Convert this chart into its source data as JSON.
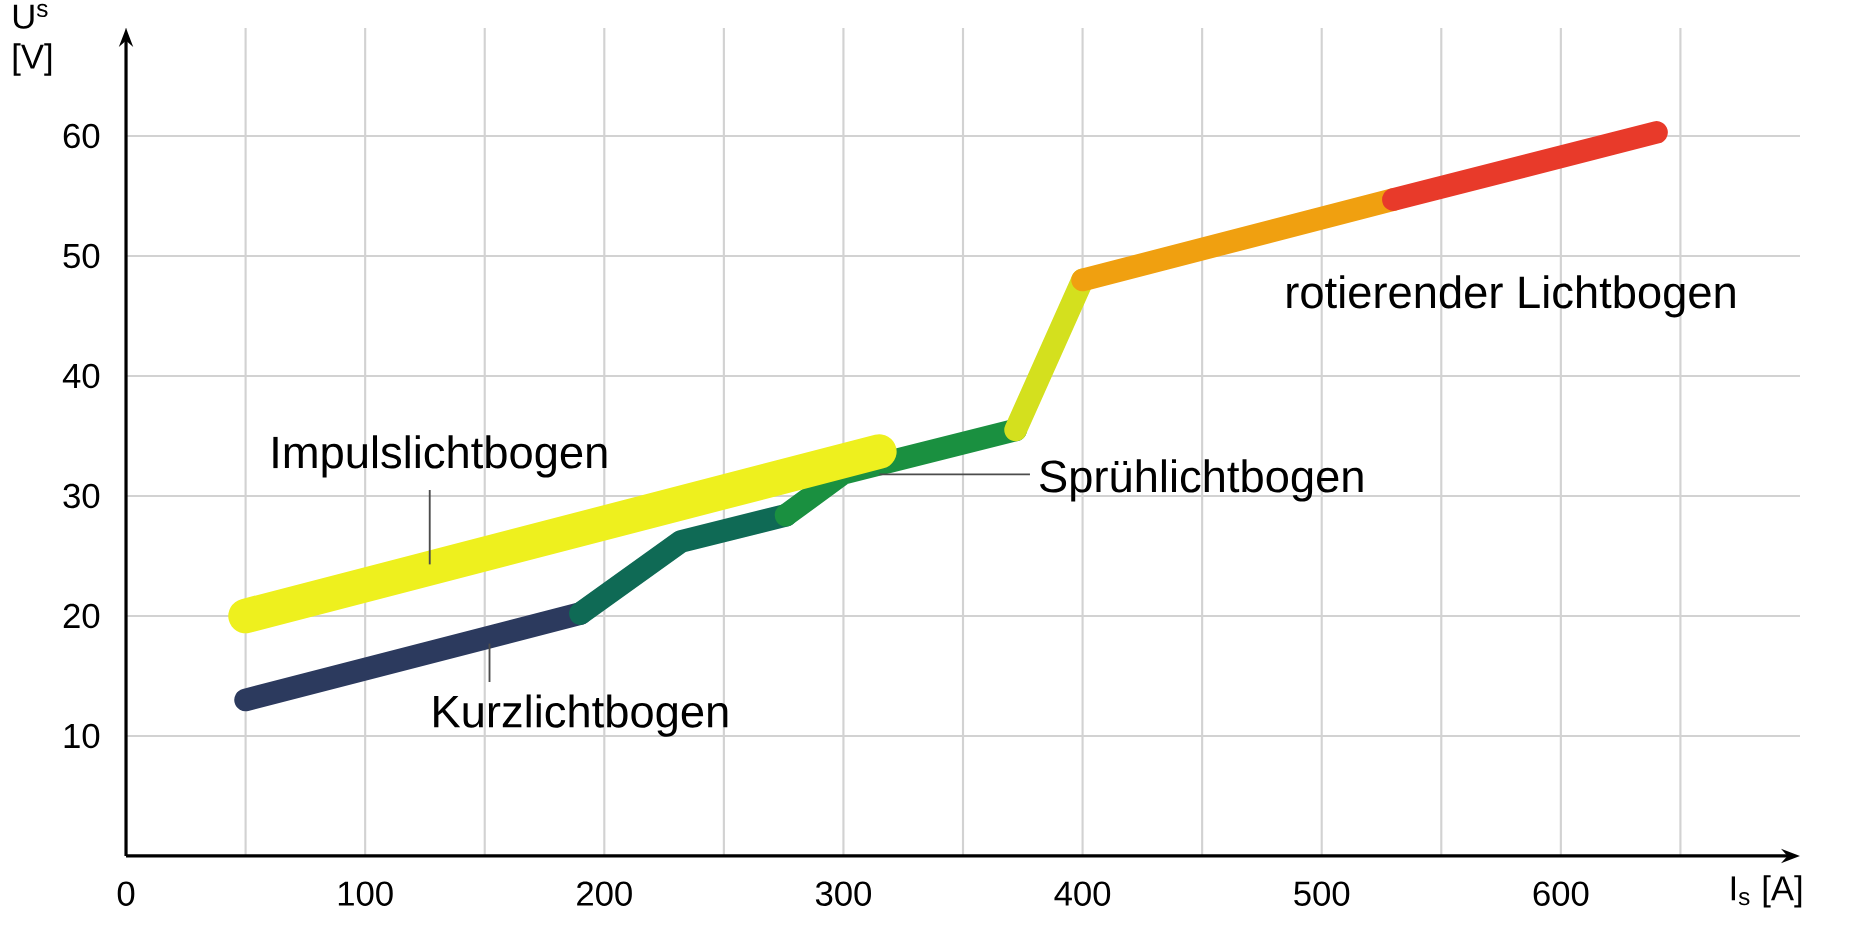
{
  "chart_data": {
    "type": "line",
    "xlabel": "I$_{s}$ [A]",
    "ylabel": "U$^{s}$ [V]",
    "xlim": [
      0,
      700
    ],
    "ylim": [
      0,
      69
    ],
    "xticks": [
      0,
      {
        "value": 50,
        "label": null
      },
      100,
      {
        "value": 150,
        "label": null
      },
      200,
      {
        "value": 250,
        "label": null
      },
      300,
      {
        "value": 350,
        "label": null
      },
      400,
      {
        "value": 450,
        "label": null
      },
      500,
      {
        "value": 550,
        "label": null
      },
      600,
      {
        "value": 650,
        "label": null
      }
    ],
    "yticks": [
      10,
      20,
      30,
      40,
      50,
      60
    ],
    "grid": true,
    "series": [
      {
        "color": "#2c3a5e",
        "x": [
          50,
          190
        ],
        "values": [
          13,
          20.2
        ]
      },
      {
        "color": "#0f6a55",
        "x": [
          190,
          232,
          276
        ],
        "values": [
          20.2,
          26.2,
          28.4
        ]
      },
      {
        "color": "#1a9040",
        "x": [
          276,
          300,
          372
        ],
        "values": [
          28.4,
          31.9,
          35.5
        ]
      },
      {
        "color": "#d4e01e",
        "x": [
          372,
          400
        ],
        "values": [
          35.5,
          48
        ]
      },
      {
        "color": "#f0a010",
        "x": [
          400,
          530
        ],
        "values": [
          48,
          54.7
        ]
      },
      {
        "color": "#e83a2a",
        "x": [
          530,
          640
        ],
        "values": [
          54.7,
          60.3
        ]
      },
      {
        "color": "#eef01e",
        "x": [
          50,
          315
        ],
        "values": [
          20,
          33.7
        ]
      }
    ],
    "annotations": [
      {
        "text": "Impulslichtbogen",
        "x": 127,
        "y": 24.3
      },
      {
        "text": "Kurzlichtbogen",
        "x": 152,
        "y": 17.7
      },
      {
        "text": "Sprühlichtbogen",
        "x": 315,
        "y": 31.8
      },
      "rotierender Lichtbogen"
    ]
  }
}
